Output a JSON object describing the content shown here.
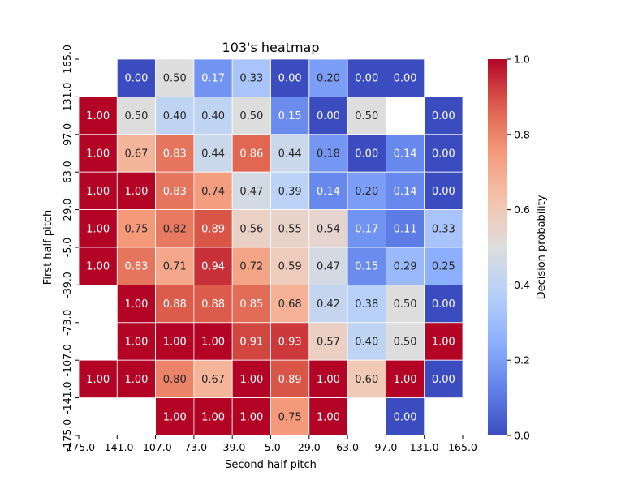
{
  "chart_data": {
    "type": "heatmap",
    "title": "103's heatmap",
    "xlabel": "Second half pitch",
    "ylabel": "First half pitch",
    "x_ticks": [
      "-175.0",
      "-141.0",
      "-107.0",
      "-73.0",
      "-39.0",
      "-5.0",
      "29.0",
      "63.0",
      "97.0",
      "131.0",
      "165.0"
    ],
    "y_ticks": [
      "165.0",
      "131.0",
      "97.0",
      "63.0",
      "29.0",
      "-5.0",
      "-39.0",
      "-73.0",
      "-107.0",
      "-141.0",
      "-175.0"
    ],
    "colorbar": {
      "label": "Decision probability",
      "ticks": [
        "0.0",
        "0.2",
        "0.4",
        "0.6",
        "0.8",
        "1.0"
      ],
      "range": [
        0,
        1
      ],
      "colormap": "coolwarm"
    },
    "values": [
      [
        null,
        0.0,
        0.5,
        0.17,
        0.33,
        0.0,
        0.2,
        0.0,
        0.0,
        null
      ],
      [
        1.0,
        0.5,
        0.4,
        0.4,
        0.5,
        0.15,
        0.0,
        0.5,
        null,
        0.0
      ],
      [
        1.0,
        0.67,
        0.83,
        0.44,
        0.86,
        0.44,
        0.18,
        0.0,
        0.14,
        0.0
      ],
      [
        1.0,
        1.0,
        0.83,
        0.74,
        0.47,
        0.39,
        0.14,
        0.2,
        0.14,
        0.0
      ],
      [
        1.0,
        0.75,
        0.82,
        0.89,
        0.56,
        0.55,
        0.54,
        0.17,
        0.11,
        0.33
      ],
      [
        1.0,
        0.83,
        0.71,
        0.94,
        0.72,
        0.59,
        0.47,
        0.15,
        0.29,
        0.25
      ],
      [
        null,
        1.0,
        0.88,
        0.88,
        0.85,
        0.68,
        0.42,
        0.38,
        0.5,
        0.0
      ],
      [
        null,
        1.0,
        1.0,
        1.0,
        0.91,
        0.93,
        0.57,
        0.4,
        0.5,
        1.0
      ],
      [
        1.0,
        1.0,
        0.8,
        0.67,
        1.0,
        0.89,
        1.0,
        0.6,
        1.0,
        0.0
      ],
      [
        null,
        null,
        1.0,
        1.0,
        1.0,
        0.75,
        1.0,
        null,
        0.0,
        null
      ]
    ]
  }
}
